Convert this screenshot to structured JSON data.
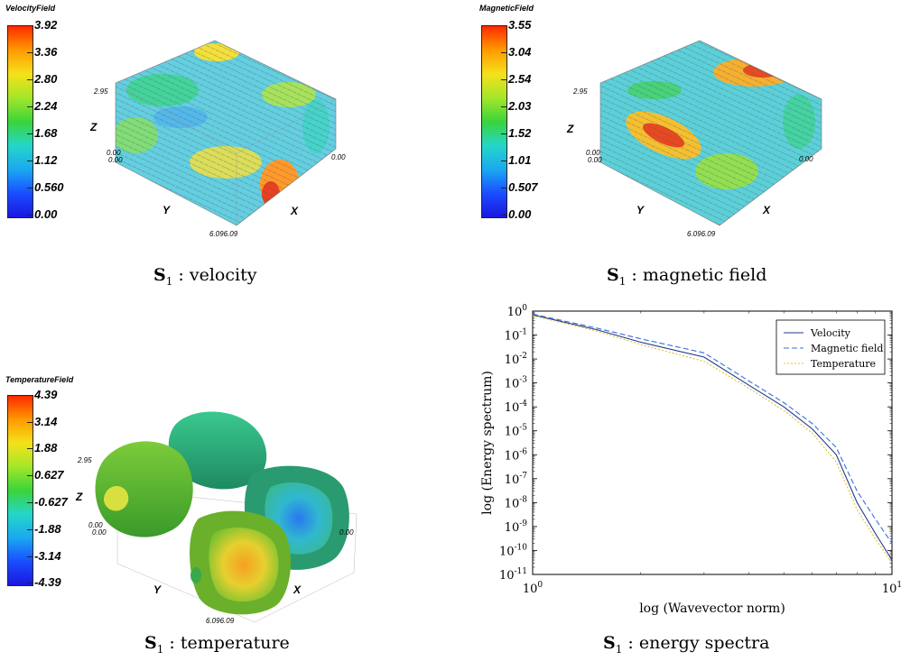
{
  "panels": {
    "velocity": {
      "colorbar_title": "VelocityField",
      "ticks": [
        "3.92",
        "3.36",
        "2.80",
        "2.24",
        "1.68",
        "1.12",
        "0.560",
        "0.00"
      ],
      "axis_x": "X",
      "axis_y": "Y",
      "axis_z": "Z",
      "z_max": "2.95",
      "z_min": "0.00",
      "y_min": "0.00",
      "x_min": "0.00",
      "corner": "6.096.09",
      "caption_symbol": "S",
      "caption_sub": "1",
      "caption_text": ": velocity"
    },
    "magnetic": {
      "colorbar_title": "MagneticField",
      "ticks": [
        "3.55",
        "3.04",
        "2.54",
        "2.03",
        "1.52",
        "1.01",
        "0.507",
        "0.00"
      ],
      "axis_x": "X",
      "axis_y": "Y",
      "axis_z": "Z",
      "z_max": "2.95",
      "z_min": "0.00",
      "y_min": "0.00",
      "x_min": "0.00",
      "corner": "6.096.09",
      "caption_symbol": "S",
      "caption_sub": "1",
      "caption_text": ": magnetic field"
    },
    "temperature": {
      "colorbar_title": "TemperatureField",
      "ticks": [
        "4.39",
        "3.14",
        "1.88",
        "0.627",
        "-0.627",
        "-1.88",
        "-3.14",
        "-4.39"
      ],
      "axis_x": "X",
      "axis_y": "Y",
      "axis_z": "Z",
      "z_max": "2.95",
      "z_min": "0.00",
      "y_min": "0.00",
      "x_min": "0.00",
      "corner": "6.096.09",
      "caption_symbol": "S",
      "caption_sub": "1",
      "caption_text": ": temperature"
    },
    "spectra": {
      "caption_symbol": "S",
      "caption_sub": "1",
      "caption_text": ": energy spectra"
    }
  },
  "colors": {
    "velocity_line": "#1f3a8a",
    "magnetic_line": "#3a6fd8",
    "temperature_line": "#e6c229"
  },
  "chart_data": {
    "type": "line",
    "title": "",
    "xlabel": "log (Wavevector norm)",
    "ylabel": "log (Energy spectrum)",
    "xscale": "log",
    "yscale": "log",
    "xlim": [
      1,
      10
    ],
    "ylim": [
      1e-11,
      1
    ],
    "x_ticks": [
      {
        "v": 1,
        "label": "10",
        "exp": "0"
      },
      {
        "v": 10,
        "label": "10",
        "exp": "1"
      }
    ],
    "y_ticks": [
      {
        "v": 0,
        "exp": "0"
      },
      {
        "v": -1,
        "exp": "-1"
      },
      {
        "v": -2,
        "exp": "-2"
      },
      {
        "v": -3,
        "exp": "-3"
      },
      {
        "v": -4,
        "exp": "-4"
      },
      {
        "v": -5,
        "exp": "-5"
      },
      {
        "v": -6,
        "exp": "-6"
      },
      {
        "v": -7,
        "exp": "-7"
      },
      {
        "v": -8,
        "exp": "-8"
      },
      {
        "v": -9,
        "exp": "-9"
      },
      {
        "v": -10,
        "exp": "-10"
      },
      {
        "v": -11,
        "exp": "-11"
      }
    ],
    "legend_position": "top-right",
    "grid": false,
    "series": [
      {
        "name": "Velocity",
        "style": "solid",
        "x": [
          1,
          1.5,
          2,
          3,
          4,
          5,
          6,
          7,
          8,
          9,
          10
        ],
        "y": [
          0.7,
          0.17,
          0.05,
          0.012,
          0.0008,
          0.0001,
          1.2e-05,
          1e-06,
          1e-08,
          5e-10,
          4e-11
        ]
      },
      {
        "name": "Magnetic field",
        "style": "dashed",
        "x": [
          1,
          1.5,
          2,
          3,
          4,
          5,
          6,
          7,
          8,
          9,
          10
        ],
        "y": [
          0.75,
          0.2,
          0.07,
          0.018,
          0.0012,
          0.00015,
          2e-05,
          2e-06,
          3e-08,
          2e-09,
          2e-10
        ]
      },
      {
        "name": "Temperature",
        "style": "dotted",
        "x": [
          1,
          1.5,
          2,
          3,
          4,
          5,
          6,
          7,
          8,
          9,
          10
        ],
        "y": [
          0.65,
          0.15,
          0.04,
          0.008,
          0.0006,
          7e-05,
          8e-06,
          5e-07,
          5e-09,
          3e-10,
          3e-11
        ]
      }
    ]
  }
}
